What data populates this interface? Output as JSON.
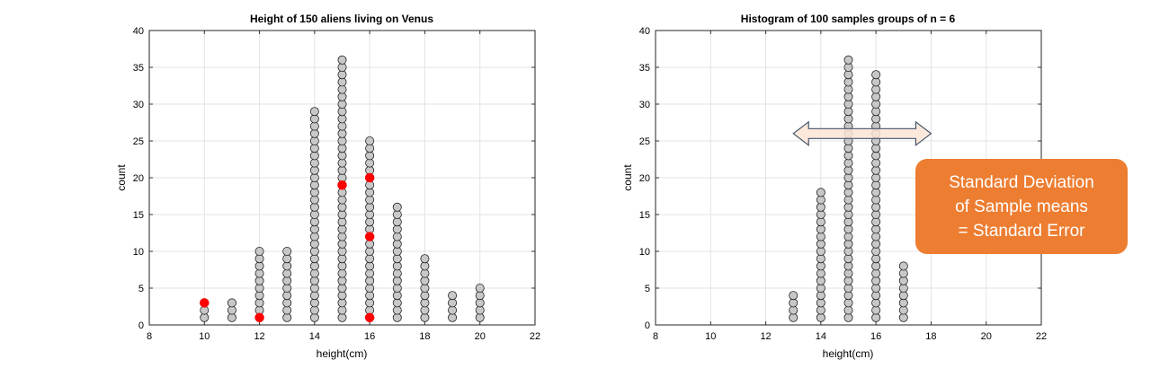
{
  "chart_data": [
    {
      "type": "scatter",
      "style": "dot-plot",
      "title": "Height of 150 aliens living on Venus",
      "xlabel": "height(cm)",
      "ylabel": "count",
      "xlim": [
        8,
        22
      ],
      "ylim": [
        0,
        40
      ],
      "xticks": [
        8,
        10,
        12,
        14,
        16,
        18,
        20,
        22
      ],
      "yticks": [
        0,
        5,
        10,
        15,
        20,
        25,
        30,
        35,
        40
      ],
      "grid": true,
      "columns": [
        {
          "x": 10,
          "count": 3
        },
        {
          "x": 11,
          "count": 3
        },
        {
          "x": 12,
          "count": 10
        },
        {
          "x": 13,
          "count": 10
        },
        {
          "x": 14,
          "count": 29
        },
        {
          "x": 15,
          "count": 36
        },
        {
          "x": 16,
          "count": 25
        },
        {
          "x": 17,
          "count": 16
        },
        {
          "x": 18,
          "count": 9
        },
        {
          "x": 19,
          "count": 4
        },
        {
          "x": 20,
          "count": 5
        }
      ],
      "highlighted_points": [
        {
          "x": 10,
          "y": 3
        },
        {
          "x": 12,
          "y": 1
        },
        {
          "x": 15,
          "y": 19
        },
        {
          "x": 16,
          "y": 20
        },
        {
          "x": 16,
          "y": 12
        },
        {
          "x": 16,
          "y": 1
        }
      ],
      "marker_color": "#c8c8c8",
      "highlight_color": "#ff0000"
    },
    {
      "type": "scatter",
      "style": "dot-plot",
      "title": "Histogram of 100 samples groups of n = 6",
      "xlabel": "height(cm)",
      "ylabel": "count",
      "xlim": [
        8,
        22
      ],
      "ylim": [
        0,
        40
      ],
      "xticks": [
        8,
        10,
        12,
        14,
        16,
        18,
        20,
        22
      ],
      "yticks": [
        0,
        5,
        10,
        15,
        20,
        25,
        30,
        35,
        40
      ],
      "grid": true,
      "columns": [
        {
          "x": 13,
          "count": 4
        },
        {
          "x": 14,
          "count": 18
        },
        {
          "x": 15,
          "count": 36
        },
        {
          "x": 16,
          "count": 34
        },
        {
          "x": 17,
          "count": 8
        }
      ],
      "highlighted_points": [],
      "marker_color": "#c8c8c8",
      "arrow": {
        "x_from": 13,
        "x_to": 18,
        "y": 26,
        "fill": "#fbe5d6",
        "stroke": "#44546a"
      },
      "callout": {
        "lines": [
          "Standard Deviation",
          "of Sample means",
          "= Standard Error"
        ],
        "fill": "#ed7d31",
        "text_color": "#ffffff"
      }
    }
  ]
}
